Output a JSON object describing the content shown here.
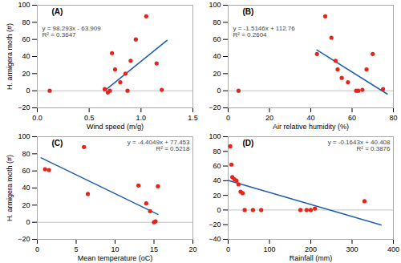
{
  "chart_data": [
    {
      "type": "scatter",
      "title": "(A)",
      "xlabel": "Wind speed (m/g)",
      "ylabel": "H. armigera moth (#)",
      "annotations": [
        "y = 98.293x - 63.909",
        "R² = 0.3647"
      ],
      "x": [
        0.12,
        0.65,
        0.68,
        0.7,
        0.72,
        0.75,
        0.8,
        0.85,
        0.87,
        0.9,
        0.95,
        1.05,
        1.15,
        1.2
      ],
      "values": [
        0,
        2,
        -2,
        0,
        44,
        25,
        10,
        20,
        0,
        35,
        60,
        87,
        32,
        1
      ],
      "color": "#e8231a",
      "fit_line": {
        "x": [
          0.645,
          1.25
        ],
        "values": [
          -0.510015,
          58.95725
        ],
        "color": "#2060b0"
      },
      "xlim": [
        0,
        1.5
      ],
      "ylim": [
        -20,
        100
      ],
      "xticks": [
        {
          "value": 0,
          "label": "0.0"
        },
        0.5,
        {
          "value": 1.0,
          "label": "1.0"
        },
        1.5
      ],
      "yticks": [
        -20,
        0,
        20,
        40,
        60,
        80,
        100
      ]
    },
    {
      "type": "scatter",
      "title": "(B)",
      "xlabel": "Air relative humidity (%)",
      "annotations": [
        "y = -1.5146x + 112.76",
        "R² = 0.2604"
      ],
      "x": [
        5,
        43,
        47,
        50,
        52,
        53,
        55,
        58,
        62,
        63,
        65,
        67,
        70,
        75
      ],
      "values": [
        0,
        43,
        87,
        62,
        35,
        25,
        15,
        10,
        0,
        0,
        1,
        25,
        43,
        2
      ],
      "color": "#e8231a",
      "fit_line": {
        "x": [
          43,
          77
        ],
        "values": [
          47.6322,
          -3.8642
        ],
        "color": "#2060b0"
      },
      "xlim": [
        0,
        80
      ],
      "ylim": [
        -20,
        100
      ],
      "xticks": [
        0,
        20,
        40,
        60,
        80
      ],
      "yticks": [
        -20,
        0,
        20,
        40,
        60,
        80,
        100
      ]
    },
    {
      "type": "scatter",
      "title": "(C)",
      "xlabel": "Mean temperature (oC)",
      "ylabel": "H. armigera moth (#)",
      "annotations": [
        "y = -4.4049x + 77.453",
        "R² = 0.5218"
      ],
      "x": [
        1,
        1.5,
        6,
        6.5,
        13,
        14,
        14.5,
        15,
        15.2,
        15.5
      ],
      "values": [
        62,
        61,
        88,
        33,
        43,
        22,
        13,
        0,
        1,
        42
      ],
      "color": "#e8231a",
      "fit_line": {
        "x": [
          0.5,
          15.5
        ],
        "values": [
          75.25055,
          9.17705
        ],
        "color": "#2060b0"
      },
      "xlim": [
        0,
        20
      ],
      "ylim": [
        -20,
        100
      ],
      "xticks": [
        0,
        5,
        10,
        15,
        20
      ],
      "yticks": [
        -20,
        0,
        20,
        40,
        60,
        80,
        100
      ]
    },
    {
      "type": "scatter",
      "title": "(D)",
      "xlabel": "Rainfall (mm)",
      "annotations": [
        "y = -0.1643x + 40.408",
        "R² = 0.3876"
      ],
      "x": [
        5,
        8,
        10,
        15,
        20,
        25,
        30,
        35,
        40,
        60,
        80,
        175,
        190,
        200,
        210,
        330
      ],
      "values": [
        87,
        62,
        45,
        42,
        40,
        35,
        25,
        23,
        0,
        0,
        0,
        0,
        0,
        0,
        2,
        12
      ],
      "color": "#e8231a",
      "fit_line": {
        "x": [
          0,
          370
        ],
        "values": [
          40.408,
          -20.383
        ],
        "color": "#2060b0"
      },
      "xlim": [
        0,
        400
      ],
      "ylim": [
        -40,
        100
      ],
      "xticks": [
        0,
        100,
        200,
        300,
        400
      ],
      "yticks": [
        -40,
        -20,
        0,
        20,
        40,
        60,
        80,
        100
      ]
    }
  ]
}
